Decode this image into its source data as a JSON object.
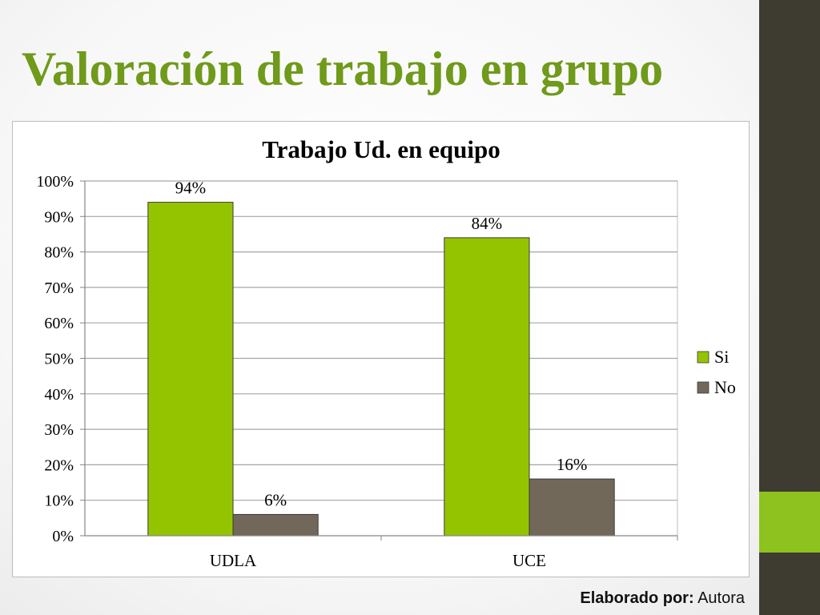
{
  "slide": {
    "title": "Valoración de trabajo en grupo",
    "credit_label": "Elaborado por:",
    "credit_value": "Autora"
  },
  "colors": {
    "title": "#6f9a1a",
    "side_dark": "#3e3c31",
    "side_accent": "#8dc21f",
    "series_si": "#94c400",
    "series_no": "#72685a"
  },
  "chart_data": {
    "type": "bar",
    "title": "Trabajo Ud. en equipo",
    "xlabel": "",
    "ylabel": "",
    "categories": [
      "UDLA",
      "UCE"
    ],
    "series": [
      {
        "name": "Si",
        "values": [
          94,
          84
        ],
        "labels": [
          "94%",
          "84%"
        ]
      },
      {
        "name": "No",
        "values": [
          6,
          16
        ],
        "labels": [
          "6%",
          "16%"
        ]
      }
    ],
    "ylim": [
      0,
      100
    ],
    "yticks": [
      0,
      10,
      20,
      30,
      40,
      50,
      60,
      70,
      80,
      90,
      100
    ],
    "ytick_labels": [
      "0%",
      "10%",
      "20%",
      "30%",
      "40%",
      "50%",
      "60%",
      "70%",
      "80%",
      "90%",
      "100%"
    ],
    "grid": true,
    "legend_position": "right"
  }
}
